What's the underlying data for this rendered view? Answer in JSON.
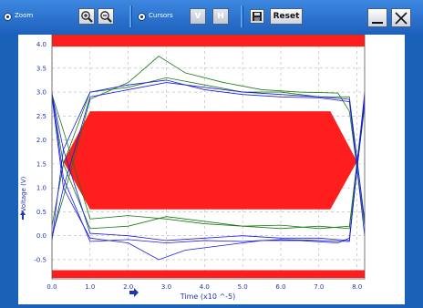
{
  "toolbar": {
    "zoom_label": "Zoom",
    "cursors_label": "Cursors",
    "v_label": "V",
    "h_label": "H",
    "reset_label": "Reset"
  },
  "colors": {
    "mask": "#ff1e1e",
    "trace_green": "#1a7a14",
    "trace_blue": "#1a1ae6",
    "axis_text": "#1f35b8"
  },
  "chart_data": {
    "type": "line",
    "title": "",
    "xlabel": "Time  (x10 ^-5)",
    "ylabel": "Voltage (V)",
    "xlim": [
      0,
      8.2
    ],
    "ylim": [
      -0.9,
      4.2
    ],
    "xticks": [
      "0.0",
      "1.0",
      "2.0",
      "3.0",
      "4.0",
      "5.0",
      "6.0",
      "7.0",
      "8.0"
    ],
    "yticks": [
      "4.0",
      "3.5",
      "3.0",
      "2.5",
      "2.0",
      "1.5",
      "1.0",
      "0.5",
      "0.0",
      "-0.5"
    ],
    "grid": true,
    "mask_polygons": [
      {
        "name": "top-limit",
        "points": [
          [
            0,
            3.95
          ],
          [
            8.2,
            3.95
          ],
          [
            8.2,
            4.2
          ],
          [
            0,
            4.2
          ]
        ]
      },
      {
        "name": "center-hexagon",
        "points": [
          [
            0.3,
            1.55
          ],
          [
            1.0,
            2.6
          ],
          [
            7.3,
            2.6
          ],
          [
            8.0,
            1.55
          ],
          [
            7.3,
            0.55
          ],
          [
            1.0,
            0.55
          ]
        ]
      },
      {
        "name": "bottom-limit",
        "points": [
          [
            0,
            -0.88
          ],
          [
            8.2,
            -0.88
          ],
          [
            8.2,
            -0.72
          ],
          [
            0,
            -0.72
          ]
        ]
      }
    ],
    "series": [
      {
        "color": "green",
        "x": [
          0,
          0.3,
          1.0,
          2.0,
          2.8,
          3.5,
          4.5,
          5.5,
          6.5,
          7.5,
          7.8,
          8.2
        ],
        "y": [
          0,
          0.8,
          2.85,
          3.2,
          3.75,
          3.4,
          3.2,
          3.05,
          3.0,
          2.98,
          2.6,
          0.2
        ]
      },
      {
        "color": "green",
        "x": [
          0,
          0.3,
          1.0,
          2.0,
          3.0,
          4.0,
          5.0,
          6.0,
          7.0,
          7.8,
          8.2
        ],
        "y": [
          0.2,
          1.5,
          3.0,
          3.1,
          3.3,
          3.15,
          3.0,
          3.0,
          2.9,
          2.9,
          0.3
        ]
      },
      {
        "color": "green",
        "x": [
          0,
          0.3,
          1.0,
          2.0,
          3.0,
          4.0,
          5.0,
          6.0,
          7.0,
          7.8,
          8.2
        ],
        "y": [
          2.95,
          2.2,
          0.35,
          0.42,
          0.35,
          0.25,
          0.2,
          0.22,
          0.15,
          0.2,
          2.9
        ]
      },
      {
        "color": "green",
        "x": [
          0,
          0.3,
          1.0,
          2.0,
          3.0,
          4.0,
          5.0,
          6.0,
          7.0,
          7.8,
          8.2
        ],
        "y": [
          2.9,
          1.5,
          0.15,
          0.2,
          0.4,
          0.3,
          0.2,
          0.15,
          0.2,
          0.15,
          2.7
        ]
      },
      {
        "color": "blue",
        "x": [
          0,
          0.3,
          1.0,
          2.0,
          3.0,
          4.0,
          5.0,
          6.0,
          7.0,
          7.8,
          8.2
        ],
        "y": [
          -0.05,
          1.0,
          2.9,
          3.05,
          3.2,
          3.1,
          3.0,
          2.95,
          2.9,
          2.85,
          0.3
        ]
      },
      {
        "color": "blue",
        "x": [
          0,
          0.3,
          1.0,
          2.0,
          3.0,
          4.0,
          5.0,
          6.0,
          7.0,
          7.8,
          8.2
        ],
        "y": [
          -0.1,
          1.8,
          3.0,
          3.15,
          3.25,
          3.05,
          2.95,
          2.9,
          2.88,
          2.8,
          0.0
        ]
      },
      {
        "color": "blue",
        "x": [
          0,
          0.3,
          1.0,
          2.0,
          3.0,
          4.0,
          5.0,
          6.0,
          7.0,
          7.8,
          8.2
        ],
        "y": [
          2.95,
          1.8,
          0.05,
          0.0,
          -0.1,
          -0.05,
          0.0,
          -0.05,
          -0.05,
          -0.1,
          2.9
        ]
      },
      {
        "color": "blue",
        "x": [
          0,
          0.3,
          1.0,
          2.0,
          2.8,
          3.5,
          4.5,
          5.5,
          6.5,
          7.5,
          7.8,
          8.2
        ],
        "y": [
          2.9,
          1.0,
          -0.05,
          -0.15,
          -0.5,
          -0.3,
          -0.2,
          -0.1,
          -0.1,
          -0.15,
          -0.05,
          2.8
        ]
      },
      {
        "color": "blue",
        "x": [
          0,
          0.3,
          1.0,
          2.0,
          3.0,
          4.0,
          5.0,
          6.0,
          7.0,
          7.8,
          8.2
        ],
        "y": [
          3.0,
          1.2,
          -0.12,
          -0.08,
          -0.15,
          -0.1,
          -0.12,
          -0.08,
          -0.1,
          -0.12,
          3.0
        ]
      }
    ]
  }
}
